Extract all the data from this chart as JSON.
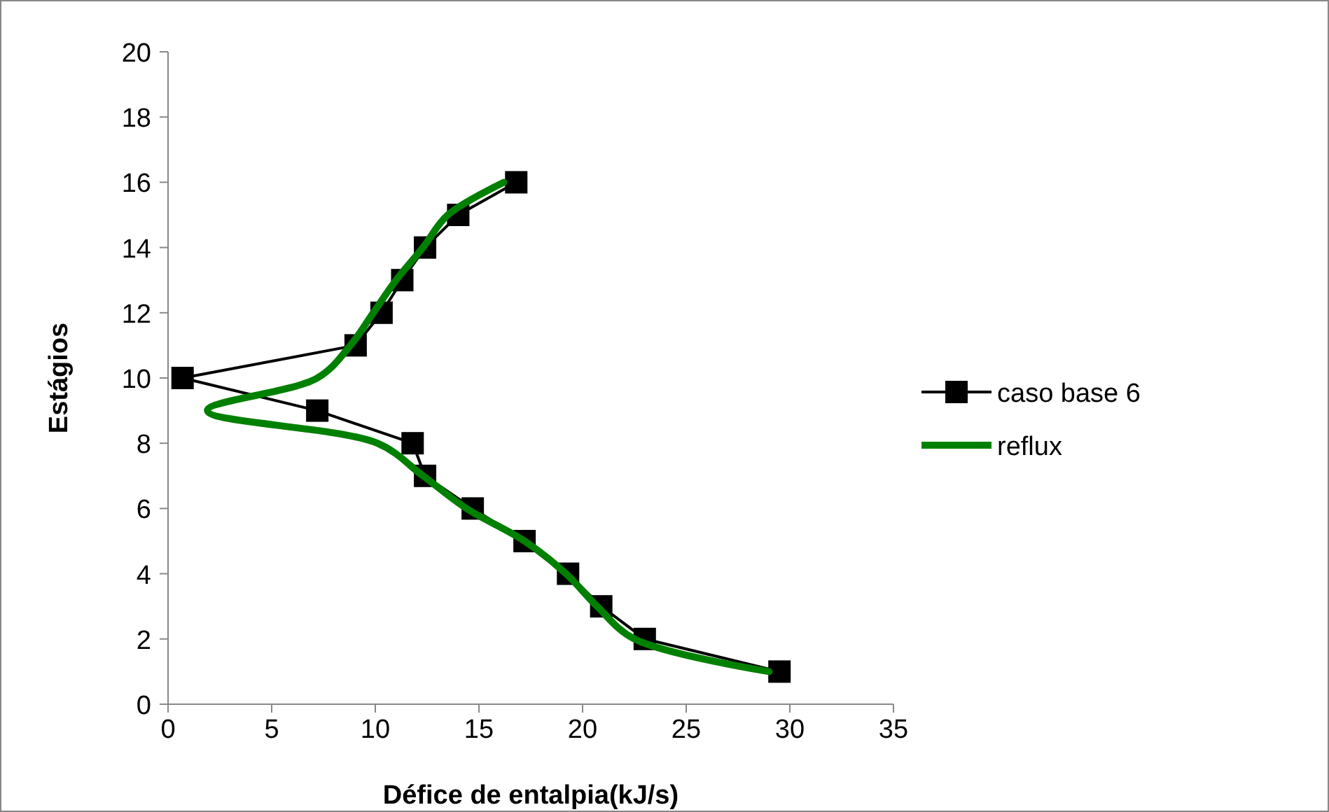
{
  "chart_data": {
    "type": "line",
    "xlabel": "Défice de entalpia(kJ/s)",
    "ylabel": "Estágios",
    "xlim": [
      0,
      35
    ],
    "xticks": [
      0,
      5,
      10,
      15,
      20,
      25,
      30,
      35
    ],
    "ylim": [
      0,
      20
    ],
    "yticks": [
      0,
      2,
      4,
      6,
      8,
      10,
      12,
      14,
      16,
      18,
      20
    ],
    "grid": false,
    "legend": "right",
    "series": [
      {
        "name": "caso base 6",
        "color": "#000000",
        "marker": "square",
        "x": [
          29.5,
          23.0,
          20.9,
          19.3,
          17.2,
          14.7,
          12.4,
          11.8,
          7.2,
          0.7,
          9.05,
          10.3,
          11.3,
          12.4,
          14.0,
          16.8
        ],
        "values": [
          1,
          2,
          3,
          4,
          5,
          6,
          7,
          8,
          9,
          10,
          11,
          12,
          13,
          14,
          15,
          16
        ]
      },
      {
        "name": "reflux",
        "color": "#008000",
        "marker": "none",
        "x": [
          29.0,
          22.5,
          20.7,
          19.2,
          17.2,
          14.4,
          12.3,
          10.1,
          1.9,
          7.2,
          8.8,
          9.9,
          11.0,
          12.3,
          13.5,
          16.2
        ],
        "values": [
          1,
          2,
          3,
          4,
          5,
          6,
          7,
          8,
          9,
          10,
          11,
          12,
          13,
          14,
          15,
          16
        ]
      }
    ]
  }
}
